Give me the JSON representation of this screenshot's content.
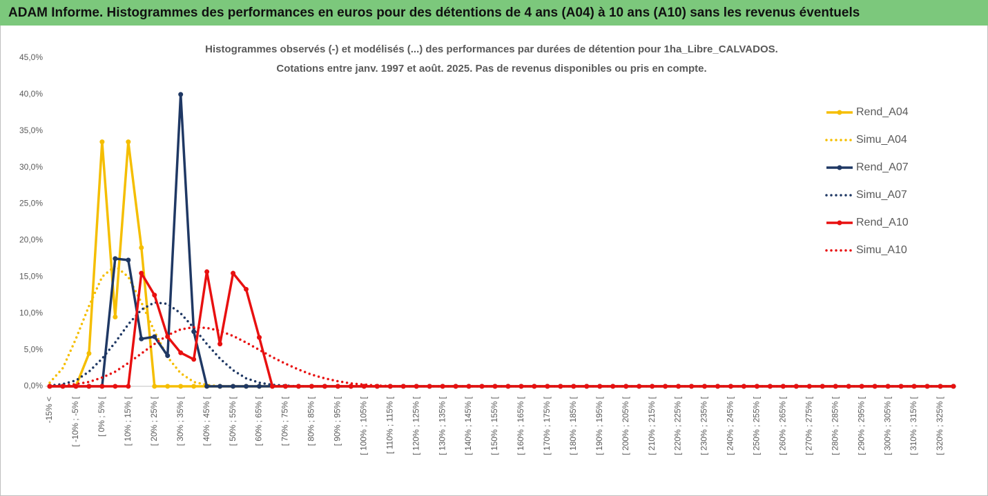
{
  "header": {
    "title": "ADAM Informe. Histogrammes des performances en euros pour des détentions de 4 ans (A04) à 10 ans (A10) sans les revenus éventuels"
  },
  "chart_data": {
    "type": "line",
    "title": "Histogrammes observés (-) et modélisés (...) des performances par durées de détention pour 1ha_Libre_CALVADOS.",
    "subtitle": "Cotations entre janv. 1997 et août. 2025. Pas de revenus disponibles ou pris en compte.",
    "categories": [
      "-15% <",
      null,
      "[ -10% ; -5% [",
      null,
      "[ 0% ; 5% [",
      null,
      "[ 10% ; 15% [",
      null,
      "[ 20% ; 25% [",
      null,
      "[ 30% ; 35% [",
      null,
      "[ 40% ; 45% [",
      null,
      "[ 50% ; 55% [",
      null,
      "[ 60% ; 65% [",
      null,
      "[ 70% ; 75% [",
      null,
      "[ 80% ; 85% [",
      null,
      "[ 90% ; 95% [",
      null,
      "[ 100% ; 105% [",
      null,
      "[ 110% ; 115% [",
      null,
      "[ 120% ; 125% [",
      null,
      "[ 130% ; 135% [",
      null,
      "[ 140% ; 145% [",
      null,
      "[ 150% ; 155% [",
      null,
      "[ 160% ; 165% [",
      null,
      "[ 170% ; 175% [",
      null,
      "[ 180% ; 185% [",
      null,
      "[ 190% ; 195% [",
      null,
      "[ 200% ; 205% [",
      null,
      "[ 210% ; 215% [",
      null,
      "[ 220% ; 225% [",
      null,
      "[ 230% ; 235% [",
      null,
      "[ 240% ; 245% [",
      null,
      "[ 250% ; 255% [",
      null,
      "[ 260% ; 265% [",
      null,
      "[ 270% ; 275% [",
      null,
      "[ 280% ; 285% [",
      null,
      "[ 290% ; 295% [",
      null,
      "[ 300% ; 305% [",
      null,
      "[ 310% ; 315% [",
      null,
      "[ 320% ; 325% [",
      null
    ],
    "series": [
      {
        "name": "Rend_A04",
        "color": "#f5be00",
        "dotted": false,
        "values": [
          0,
          0,
          0,
          4.5,
          33.5,
          9.5,
          33.5,
          19,
          0,
          0,
          0,
          0,
          0,
          0,
          0,
          0,
          0,
          0,
          0,
          0,
          0,
          0,
          0,
          0,
          0,
          0,
          0,
          0,
          0,
          0,
          0,
          0,
          0,
          0,
          0,
          0,
          0,
          0,
          0,
          0,
          0,
          0,
          0,
          0,
          0,
          0,
          0,
          0,
          0,
          0,
          0,
          0,
          0,
          0,
          0,
          0,
          0,
          0,
          0,
          0,
          0,
          0,
          0,
          0,
          0,
          0,
          0,
          0,
          0,
          0
        ]
      },
      {
        "name": "Simu_A04",
        "color": "#f5be00",
        "dotted": true,
        "values": [
          0.5,
          2.5,
          6.5,
          11,
          15,
          16.5,
          15,
          11.5,
          7.5,
          4,
          1.8,
          0.6,
          0.2,
          0,
          0,
          0,
          0,
          0,
          0,
          0,
          0,
          0,
          0,
          0,
          0,
          0,
          0,
          0,
          0,
          0,
          0,
          0,
          0,
          0,
          0,
          0,
          0,
          0,
          0,
          0,
          0,
          0,
          0,
          0,
          0,
          0,
          0,
          0,
          0,
          0,
          0,
          0,
          0,
          0,
          0,
          0,
          0,
          0,
          0,
          0,
          0,
          0,
          0,
          0,
          0,
          0,
          0,
          0,
          0,
          0
        ]
      },
      {
        "name": "Rend_A07",
        "color": "#1f3864",
        "dotted": false,
        "values": [
          0,
          0,
          0,
          0,
          0,
          17.5,
          17.3,
          6.5,
          6.8,
          4.2,
          40,
          7.5,
          0,
          0,
          0,
          0,
          0,
          0,
          0,
          0,
          0,
          0,
          0,
          0,
          0,
          0,
          0,
          0,
          0,
          0,
          0,
          0,
          0,
          0,
          0,
          0,
          0,
          0,
          0,
          0,
          0,
          0,
          0,
          0,
          0,
          0,
          0,
          0,
          0,
          0,
          0,
          0,
          0,
          0,
          0,
          0,
          0,
          0,
          0,
          0,
          0,
          0,
          0,
          0,
          0,
          0,
          0,
          0,
          0,
          0
        ]
      },
      {
        "name": "Simu_A07",
        "color": "#1f3864",
        "dotted": true,
        "values": [
          0.1,
          0.3,
          0.8,
          2,
          3.8,
          6,
          8.5,
          10.5,
          11.5,
          11.3,
          10,
          8,
          5.8,
          3.8,
          2.2,
          1.1,
          0.5,
          0.2,
          0.1,
          0,
          0,
          0,
          0,
          0,
          0,
          0,
          0,
          0,
          0,
          0,
          0,
          0,
          0,
          0,
          0,
          0,
          0,
          0,
          0,
          0,
          0,
          0,
          0,
          0,
          0,
          0,
          0,
          0,
          0,
          0,
          0,
          0,
          0,
          0,
          0,
          0,
          0,
          0,
          0,
          0,
          0,
          0,
          0,
          0,
          0,
          0,
          0,
          0,
          0,
          0
        ]
      },
      {
        "name": "Rend_A10",
        "color": "#e81010",
        "dotted": false,
        "values": [
          0,
          0,
          0,
          0,
          0,
          0,
          0,
          15.5,
          12.5,
          6.8,
          4.6,
          3.7,
          15.7,
          5.8,
          15.5,
          13.3,
          6.7,
          0,
          0,
          0,
          0,
          0,
          0,
          0,
          0,
          0,
          0,
          0,
          0,
          0,
          0,
          0,
          0,
          0,
          0,
          0,
          0,
          0,
          0,
          0,
          0,
          0,
          0,
          0,
          0,
          0,
          0,
          0,
          0,
          0,
          0,
          0,
          0,
          0,
          0,
          0,
          0,
          0,
          0,
          0,
          0,
          0,
          0,
          0,
          0,
          0,
          0,
          0,
          0,
          0
        ]
      },
      {
        "name": "Simu_A10",
        "color": "#e81010",
        "dotted": true,
        "values": [
          0,
          0.1,
          0.3,
          0.6,
          1.2,
          2,
          3.2,
          4.5,
          5.8,
          7,
          7.8,
          8.1,
          8,
          7.6,
          6.9,
          6,
          5,
          4,
          3.1,
          2.3,
          1.6,
          1.1,
          0.7,
          0.4,
          0.25,
          0.1,
          0.05,
          0,
          0,
          0,
          0,
          0,
          0,
          0,
          0,
          0,
          0,
          0,
          0,
          0,
          0,
          0,
          0,
          0,
          0,
          0,
          0,
          0,
          0,
          0,
          0,
          0,
          0,
          0,
          0,
          0,
          0,
          0,
          0,
          0,
          0,
          0,
          0,
          0,
          0,
          0,
          0,
          0,
          0,
          0
        ]
      }
    ],
    "ylim": [
      0,
      45
    ],
    "yticks": [
      {
        "value": 0,
        "label": "0,0%"
      },
      {
        "value": 5,
        "label": "5,0%"
      },
      {
        "value": 10,
        "label": "10,0%"
      },
      {
        "value": 15,
        "label": "15,0%"
      },
      {
        "value": 20,
        "label": "20,0%"
      },
      {
        "value": 25,
        "label": "25,0%"
      },
      {
        "value": 30,
        "label": "30,0%"
      },
      {
        "value": 35,
        "label": "35,0%"
      },
      {
        "value": 40,
        "label": "40,0%"
      },
      {
        "value": 45,
        "label": "45,0%"
      }
    ],
    "grid": false,
    "legend": "right"
  }
}
